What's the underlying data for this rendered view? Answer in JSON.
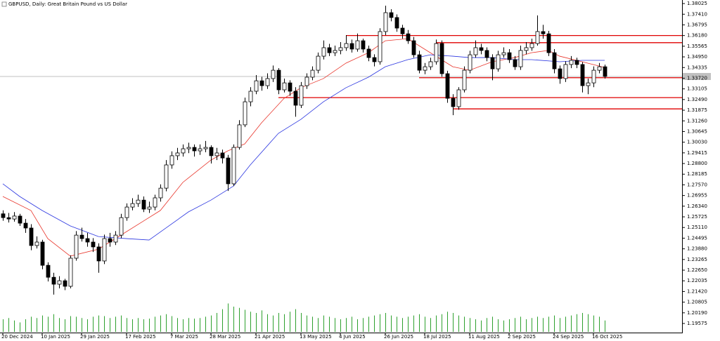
{
  "chart_data": {
    "type": "candlestick",
    "title": "GBPUSD, Daily:  Great Britain Pound vs US Dollar",
    "open": [
      1.259,
      1.2568,
      1.256,
      1.2577,
      1.2536,
      1.2508,
      1.2407,
      1.2427,
      1.2293,
      1.2224,
      1.2184,
      1.2204,
      1.2172,
      1.2334,
      1.2467,
      1.2447,
      1.2427,
      1.2399,
      1.2318,
      1.2447,
      1.2427,
      1.2467,
      1.2568,
      1.2629,
      1.2649,
      1.2669,
      1.2617,
      1.2629,
      1.2682,
      1.2738,
      1.2872,
      1.2925,
      1.2941,
      1.2965,
      1.2973,
      1.2953,
      1.2965,
      1.2973,
      1.2925,
      1.2941,
      1.2912,
      1.2763,
      1.2973,
      1.3103,
      1.3236,
      1.3297,
      1.3357,
      1.3329,
      1.337,
      1.3418,
      1.3305,
      1.3345,
      1.3297,
      1.3216,
      1.3329,
      1.3378,
      1.3418,
      1.3499,
      1.3548,
      1.3519,
      1.3532,
      1.3548,
      1.3572,
      1.354,
      1.3588,
      1.354,
      1.3491,
      1.3467,
      1.3641,
      1.375,
      1.3722,
      1.3661,
      1.3628,
      1.3588,
      1.3507,
      1.3418,
      1.3438,
      1.3467,
      1.3572,
      1.3398,
      1.3256,
      1.3208,
      1.3305,
      1.3418,
      1.3507,
      1.3548,
      1.3532,
      1.3491,
      1.3426,
      1.3507,
      1.3519,
      1.3479,
      1.3438,
      1.3532,
      1.3548,
      1.3572,
      1.3641,
      1.3628,
      1.3519,
      1.3426,
      1.337,
      1.3451,
      1.3475,
      1.3451,
      1.3329,
      1.3345,
      1.3418,
      1.3438
    ],
    "high": [
      1.261,
      1.2595,
      1.26,
      1.259,
      1.256,
      1.253,
      1.246,
      1.244,
      1.231,
      1.225,
      1.223,
      1.2215,
      1.235,
      1.249,
      1.251,
      1.248,
      1.245,
      1.242,
      1.247,
      1.248,
      1.249,
      1.259,
      1.265,
      1.268,
      1.27,
      1.269,
      1.266,
      1.27,
      1.276,
      1.29,
      1.295,
      1.297,
      1.299,
      1.3,
      1.299,
      1.299,
      1.301,
      1.2985,
      1.297,
      1.296,
      1.293,
      1.299,
      1.313,
      1.326,
      1.332,
      1.339,
      1.338,
      1.34,
      1.3445,
      1.343,
      1.337,
      1.336,
      1.332,
      1.335,
      1.34,
      1.344,
      1.352,
      1.359,
      1.357,
      1.356,
      1.358,
      1.362,
      1.3595,
      1.363,
      1.36,
      1.356,
      1.351,
      1.366,
      1.379,
      1.377,
      1.374,
      1.368,
      1.365,
      1.361,
      1.353,
      1.346,
      1.349,
      1.3595,
      1.359,
      1.3415,
      1.328,
      1.332,
      1.344,
      1.353,
      1.359,
      1.357,
      1.355,
      1.351,
      1.353,
      1.355,
      1.354,
      1.35,
      1.356,
      1.358,
      1.36,
      1.3734,
      1.368,
      1.3645,
      1.354,
      1.3445,
      1.347,
      1.35,
      1.349,
      1.3465,
      1.337,
      1.344,
      1.346,
      1.345
    ],
    "low": [
      1.255,
      1.254,
      1.2545,
      1.252,
      1.248,
      1.238,
      1.239,
      1.227,
      1.22,
      1.2124,
      1.216,
      1.215,
      1.216,
      1.232,
      1.243,
      1.24,
      1.237,
      1.225,
      1.23,
      1.24,
      1.241,
      1.245,
      1.255,
      1.261,
      1.263,
      1.26,
      1.2595,
      1.261,
      1.266,
      1.272,
      1.285,
      1.29,
      1.292,
      1.294,
      1.292,
      1.293,
      1.2945,
      1.288,
      1.29,
      1.288,
      1.2722,
      1.275,
      1.296,
      1.309,
      1.321,
      1.328,
      1.33,
      1.331,
      1.335,
      1.328,
      1.329,
      1.327,
      1.315,
      1.32,
      1.331,
      1.336,
      1.34,
      1.348,
      1.35,
      1.35,
      1.351,
      1.353,
      1.352,
      1.3525,
      1.352,
      1.347,
      1.344,
      1.345,
      1.362,
      1.37,
      1.364,
      1.36,
      1.357,
      1.349,
      1.34,
      1.3395,
      1.342,
      1.345,
      1.338,
      1.323,
      1.3159,
      1.319,
      1.329,
      1.34,
      1.349,
      1.351,
      1.347,
      1.336,
      1.341,
      1.349,
      1.346,
      1.342,
      1.342,
      1.351,
      1.353,
      1.356,
      1.36,
      1.35,
      1.34,
      1.334,
      1.335,
      1.343,
      1.343,
      1.329,
      1.328,
      1.332,
      1.34,
      1.337
    ],
    "close": [
      1.2568,
      1.256,
      1.2577,
      1.2536,
      1.2508,
      1.2407,
      1.2427,
      1.2293,
      1.2224,
      1.2184,
      1.2204,
      1.2172,
      1.2334,
      1.2467,
      1.2447,
      1.2427,
      1.2399,
      1.2318,
      1.2447,
      1.2427,
      1.2467,
      1.2568,
      1.2629,
      1.2649,
      1.2669,
      1.2617,
      1.2629,
      1.2682,
      1.2738,
      1.2872,
      1.2925,
      1.2941,
      1.2965,
      1.2973,
      1.2953,
      1.2965,
      1.2973,
      1.2925,
      1.2941,
      1.2912,
      1.2763,
      1.2973,
      1.3103,
      1.3236,
      1.3297,
      1.3357,
      1.3329,
      1.337,
      1.3418,
      1.3305,
      1.3345,
      1.3297,
      1.3216,
      1.3329,
      1.3378,
      1.3418,
      1.3499,
      1.3548,
      1.3519,
      1.3532,
      1.3548,
      1.3572,
      1.354,
      1.3588,
      1.354,
      1.3491,
      1.3467,
      1.3641,
      1.375,
      1.3722,
      1.3661,
      1.3628,
      1.3588,
      1.3507,
      1.3418,
      1.3438,
      1.3467,
      1.3572,
      1.3398,
      1.3256,
      1.3208,
      1.3305,
      1.3418,
      1.3507,
      1.3548,
      1.3532,
      1.3491,
      1.3426,
      1.3507,
      1.3519,
      1.3479,
      1.3438,
      1.3532,
      1.3548,
      1.3572,
      1.3641,
      1.3628,
      1.3519,
      1.3426,
      1.337,
      1.3451,
      1.3475,
      1.3451,
      1.3329,
      1.3345,
      1.3418,
      1.3438,
      1.3382
    ],
    "volume": [
      20,
      22,
      18,
      15,
      20,
      24,
      22,
      26,
      24,
      28,
      22,
      20,
      25,
      24,
      22,
      20,
      24,
      26,
      25,
      22,
      24,
      26,
      22,
      20,
      22,
      20,
      21,
      24,
      26,
      28,
      25,
      22,
      20,
      22,
      21,
      22,
      24,
      26,
      30,
      36,
      45,
      40,
      38,
      35,
      32,
      30,
      34,
      28,
      26,
      30,
      28,
      32,
      36,
      30,
      26,
      24,
      22,
      26,
      24,
      22,
      20,
      22,
      24,
      20,
      22,
      24,
      26,
      28,
      30,
      26,
      24,
      22,
      24,
      26,
      28,
      24,
      22,
      26,
      28,
      32,
      30,
      26,
      24,
      22,
      20,
      18,
      22,
      24,
      20,
      18,
      20,
      22,
      24,
      20,
      22,
      24,
      22,
      24,
      26,
      22,
      24,
      26,
      28,
      30,
      28,
      26,
      24,
      18
    ],
    "volume_lim": [
      0,
      50
    ],
    "volume_color": "#2ea02e",
    "up_color": "#ffffff",
    "down_color": "#000000",
    "ylim": [
      1.1905,
      1.3823
    ],
    "yticks": [
      1.38025,
      {
        "value": 1.3741,
        "label": "1.37410"
      },
      1.36795,
      {
        "value": 1.3618,
        "label": "1.36180"
      },
      1.35565,
      {
        "value": 1.3495,
        "label": "1.34950"
      },
      1.34335,
      {
        "value": 1.3372,
        "label": "1.33720"
      },
      1.33105,
      {
        "value": 1.3249,
        "label": "1.32490"
      },
      1.31875,
      {
        "value": 1.3126,
        "label": "1.31260"
      },
      1.30645,
      {
        "value": 1.3003,
        "label": "1.30030"
      },
      1.29415,
      {
        "value": 1.288,
        "label": "1.28800"
      },
      1.28185,
      {
        "value": 1.2757,
        "label": "1.27570"
      },
      1.26955,
      {
        "value": 1.2634,
        "label": "1.26340"
      },
      1.25725,
      {
        "value": 1.2511,
        "label": "1.25110"
      },
      1.24495,
      {
        "value": 1.2388,
        "label": "1.23880"
      },
      1.23265,
      {
        "value": 1.2265,
        "label": "1.22650"
      },
      1.22035,
      {
        "value": 1.2142,
        "label": "1.21420"
      },
      1.20805,
      {
        "value": 1.2019,
        "label": "1.20190"
      },
      1.19575
    ],
    "xticks": [
      {
        "value": 0,
        "label": "20 Dec 2024"
      },
      {
        "value": 7,
        "label": "10 Jan 2025"
      },
      {
        "value": 14,
        "label": "29 Jan 2025"
      },
      {
        "value": 22,
        "label": "17 Feb 2025"
      },
      {
        "value": 30,
        "label": "7 Mar 2025"
      },
      {
        "value": 37,
        "label": "28 Mar 2025"
      },
      {
        "value": 45,
        "label": "21 Apr 2025"
      },
      {
        "value": 53,
        "label": "13 May 2025"
      },
      {
        "value": 60,
        "label": "4 Jun 2025"
      },
      {
        "value": 68,
        "label": "26 Jun 2025"
      },
      {
        "value": 75,
        "label": "18 Jul 2025"
      },
      {
        "value": 83,
        "label": "11 Aug 2025"
      },
      {
        "value": 90,
        "label": "2 Sep 2025"
      },
      {
        "value": 98,
        "label": "24 Sep 2025"
      },
      {
        "value": 105,
        "label": "16 Oct 2025"
      }
    ],
    "ma": [
      {
        "color": "#e8342a",
        "x": [
          0,
          5,
          8,
          12,
          17,
          21,
          25,
          28,
          32,
          37,
          40,
          43,
          46,
          50,
          53,
          57,
          61,
          65,
          68,
          72,
          76,
          80,
          83,
          87,
          91,
          94,
          97,
          99,
          103,
          107
        ],
        "values": [
          1.269,
          1.2609,
          1.2447,
          1.2346,
          1.2386,
          1.2467,
          1.2548,
          1.2609,
          1.2771,
          1.29,
          1.2953,
          1.2993,
          1.3115,
          1.3256,
          1.3317,
          1.337,
          1.3459,
          1.3519,
          1.3588,
          1.36,
          1.3519,
          1.3438,
          1.3418,
          1.3467,
          1.3491,
          1.3519,
          1.3532,
          1.3499,
          1.3467,
          1.3434
        ]
      },
      {
        "color": "#2a35e0",
        "x": [
          0,
          3,
          7,
          12,
          17,
          22,
          26,
          29,
          33,
          37,
          41,
          44,
          49,
          53,
          57,
          61,
          65,
          68,
          72,
          76,
          80,
          83,
          87,
          91,
          94,
          99,
          103,
          107
        ],
        "values": [
          1.2763,
          1.269,
          1.2609,
          1.252,
          1.2459,
          1.2447,
          1.2439,
          1.2508,
          1.2601,
          1.2669,
          1.275,
          1.2872,
          1.3054,
          1.3135,
          1.3236,
          1.3317,
          1.3378,
          1.3438,
          1.3479,
          1.3507,
          1.3499,
          1.3491,
          1.3491,
          1.3479,
          1.3479,
          1.3467,
          1.3475,
          1.3475
        ]
      }
    ],
    "levels": [
      {
        "value": 1.3618,
        "start": 61
      },
      {
        "value": 1.3577,
        "start": 77
      },
      {
        "value": 1.3375,
        "start": 74
      },
      {
        "value": 1.326,
        "start": 49
      },
      {
        "value": 1.3195,
        "start": 80
      }
    ],
    "level_color": "#e00000",
    "price_line_color": "#c0c0c0"
  }
}
